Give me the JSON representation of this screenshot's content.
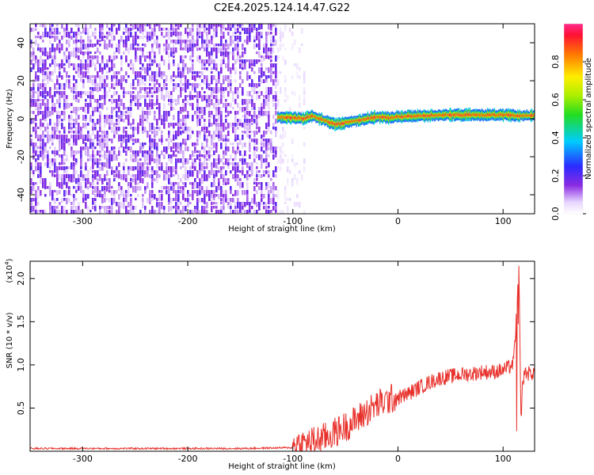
{
  "window": {
    "title": "C2E4.2025.124.14.47.G22"
  },
  "colors": {
    "background": "#ffffff",
    "snr_line": "#e8302a",
    "axis": "#000000"
  },
  "chart_data": [
    {
      "type": "heatmap",
      "title": "C2E4.2025.124.14.47.G22",
      "xlabel": "Height of straight line (km)",
      "ylabel": "Frequency (Hz)",
      "xlim": [
        -350,
        130
      ],
      "ylim": [
        -50,
        50
      ],
      "xticks": [
        -300,
        -200,
        -100,
        0,
        100
      ],
      "yticks": [
        -40,
        -20,
        0,
        20,
        40
      ],
      "colormap": "rainbow (white-purple-blue-cyan-green-yellow-red)",
      "colorbar": {
        "label": "Normalized spectral amplitude",
        "range": [
          0,
          1
        ],
        "ticks": [
          "0.0",
          "0.2",
          "0.4",
          "0.6",
          "0.8"
        ]
      },
      "regions": [
        {
          "x_range": [
            -350,
            -115
          ],
          "description": "broadband noise",
          "level": [
            0.05,
            0.2
          ]
        },
        {
          "x_range": [
            -115,
            -88
          ],
          "description": "sparse noise",
          "level": [
            0.02,
            0.06
          ]
        },
        {
          "x_range": [
            -115,
            130
          ],
          "description": "narrow signal line",
          "freq_center_hz": 1.5,
          "level": [
            0.6,
            1.0
          ]
        }
      ],
      "signal_line": {
        "x": [
          -115,
          -100,
          -90,
          -82,
          -70,
          -60,
          -50,
          -40,
          -30,
          -20,
          -10,
          0,
          20,
          40,
          60,
          80,
          100,
          115,
          130
        ],
        "freq": [
          1,
          0.5,
          0,
          1.5,
          -1,
          -3,
          -2,
          -1,
          0,
          1,
          0.5,
          1,
          1.5,
          2,
          2,
          2,
          2,
          1.5,
          2
        ]
      }
    },
    {
      "type": "line",
      "xlabel": "Height of straight line (km)",
      "ylabel": "SNR (10 * v/v)",
      "yexponent_label": "(x10",
      "yexponent_sup": "4",
      "yexponent_close": ")",
      "xlim": [
        -350,
        130
      ],
      "ylim": [
        0,
        2.2
      ],
      "xticks": [
        -300,
        -200,
        -100,
        0,
        100
      ],
      "yticks": [
        "0.5",
        "1.0",
        "1.5",
        "2.0"
      ],
      "ytick_values": [
        0.5,
        1.0,
        1.5,
        2.0
      ],
      "series": [
        {
          "color": "#e8302a",
          "x": [
            -350,
            -300,
            -250,
            -200,
            -150,
            -100,
            -90,
            -80,
            -70,
            -60,
            -50,
            -40,
            -30,
            -20,
            -10,
            0,
            10,
            20,
            30,
            40,
            50,
            60,
            70,
            80,
            90,
            100,
            105,
            110,
            113,
            115,
            117,
            120,
            125,
            130
          ],
          "y": [
            0.03,
            0.03,
            0.03,
            0.03,
            0.03,
            0.04,
            0.05,
            0.08,
            0.12,
            0.18,
            0.25,
            0.32,
            0.42,
            0.5,
            0.55,
            0.6,
            0.65,
            0.72,
            0.78,
            0.83,
            0.85,
            0.87,
            0.88,
            0.9,
            0.9,
            0.92,
            0.95,
            1.0,
            1.6,
            2.1,
            0.5,
            0.9,
            0.88,
            0.9
          ]
        }
      ]
    }
  ]
}
